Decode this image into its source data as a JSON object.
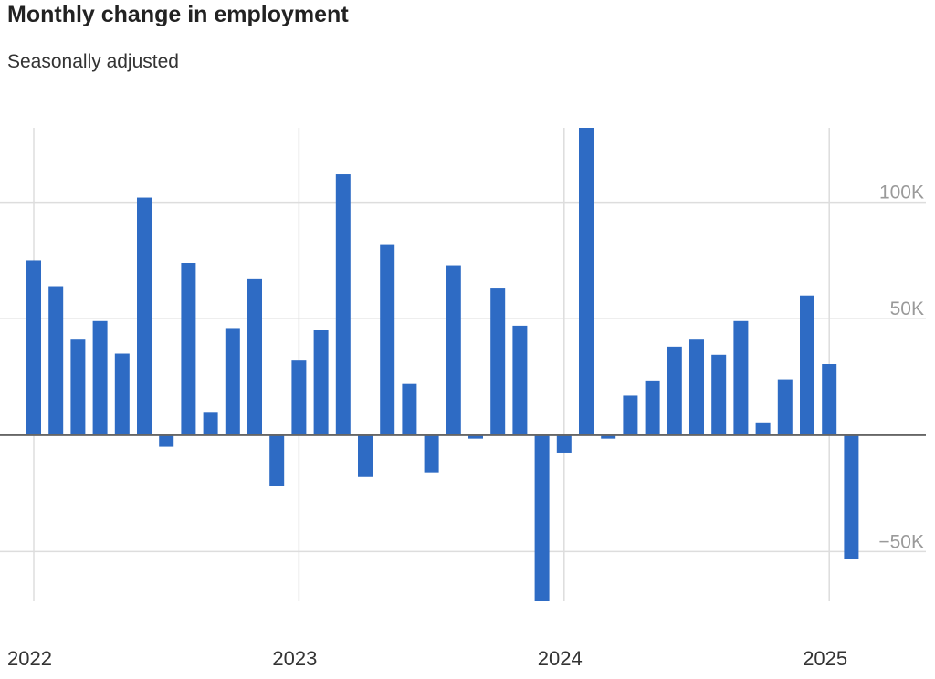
{
  "header": {
    "title": "Monthly change in employment",
    "subtitle": "Seasonally adjusted"
  },
  "chart_data": {
    "type": "bar",
    "title": "Monthly change in employment",
    "subtitle": "Seasonally adjusted",
    "x": [
      "2022-01",
      "2022-02",
      "2022-03",
      "2022-04",
      "2022-05",
      "2022-06",
      "2022-07",
      "2022-08",
      "2022-09",
      "2022-10",
      "2022-11",
      "2022-12",
      "2023-01",
      "2023-02",
      "2023-03",
      "2023-04",
      "2023-05",
      "2023-06",
      "2023-07",
      "2023-08",
      "2023-09",
      "2023-10",
      "2023-11",
      "2023-12",
      "2024-01",
      "2024-02",
      "2024-03",
      "2024-04",
      "2024-05",
      "2024-06",
      "2024-07",
      "2024-08",
      "2024-09",
      "2024-10",
      "2024-11",
      "2024-12",
      "2025-01",
      "2025-02"
    ],
    "values": [
      75000,
      64000,
      41000,
      49000,
      35000,
      102000,
      -5000,
      74000,
      10000,
      46000,
      67000,
      -22000,
      32000,
      45000,
      112000,
      -18000,
      82000,
      22000,
      -16000,
      73000,
      -1500,
      63000,
      47000,
      -71000,
      -7500,
      132000,
      -1500,
      17000,
      23500,
      38000,
      41000,
      34500,
      49000,
      5500,
      24000,
      60000,
      30500,
      -53000
    ],
    "xticks": [
      "2022",
      "2023",
      "2024",
      "2025"
    ],
    "ylim": [
      -71000,
      132000
    ],
    "yticks": [
      {
        "value": 100000,
        "label": "100K"
      },
      {
        "value": 50000,
        "label": "50K"
      },
      {
        "value": -50000,
        "label": "−50K"
      }
    ],
    "xlabel": "",
    "ylabel": "",
    "grid": true,
    "colors": {
      "bar": "#2e6bc4",
      "grid": "#dddddd",
      "baseline": "#666666"
    }
  }
}
